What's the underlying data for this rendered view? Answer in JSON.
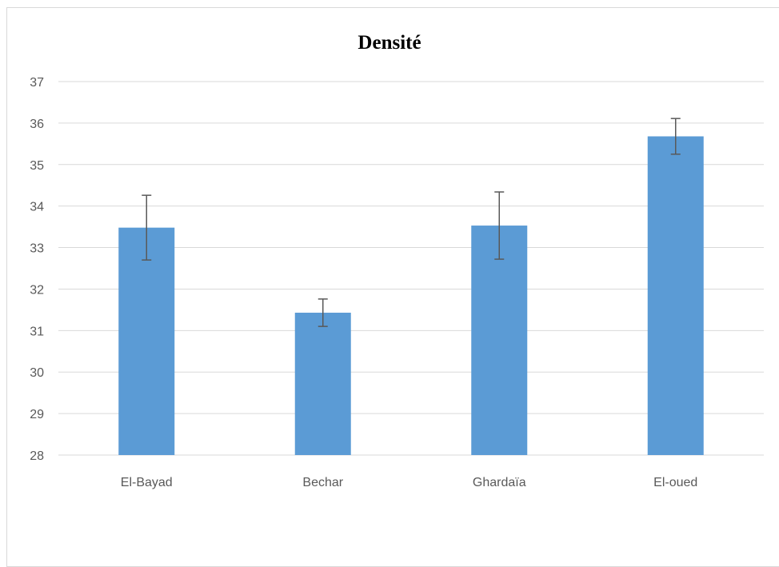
{
  "chart_data": {
    "type": "bar",
    "title": "Densité",
    "categories": [
      "El-Bayad",
      "Bechar",
      "Ghardaïa",
      "El-oued"
    ],
    "values": [
      33.48,
      31.43,
      33.53,
      35.68
    ],
    "error_plus": [
      0.78,
      0.33,
      0.81,
      0.43
    ],
    "error_minus": [
      0.78,
      0.33,
      0.81,
      0.43
    ],
    "ylim": [
      28,
      37
    ],
    "yticks": [
      28,
      29,
      30,
      31,
      32,
      33,
      34,
      35,
      36,
      37
    ],
    "xlabel": "",
    "ylabel": "",
    "grid": true,
    "bar_color": "#5b9bd5",
    "error_bar_color": "#595959",
    "gridline_color": "#d9d9d9"
  }
}
